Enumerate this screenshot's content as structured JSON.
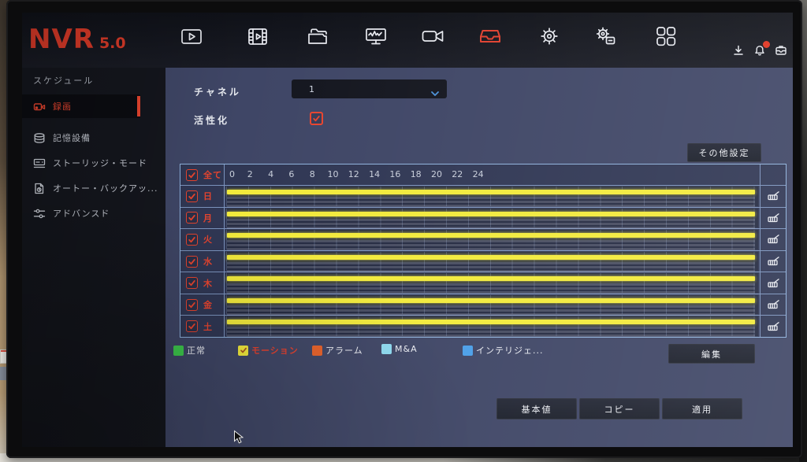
{
  "brand": {
    "name": "NVR",
    "version": "5.0"
  },
  "topbar": {
    "nav": [
      {
        "name": "playback-icon",
        "active": false
      },
      {
        "name": "filmclip-icon",
        "active": false
      },
      {
        "name": "files-icon",
        "active": false
      },
      {
        "name": "system-status-icon",
        "active": false
      },
      {
        "name": "camera-icon",
        "active": false
      },
      {
        "name": "archive-icon",
        "active": true
      },
      {
        "name": "settings-icon",
        "active": false
      },
      {
        "name": "maintenance-icon",
        "active": false
      },
      {
        "name": "apps-icon",
        "active": false
      }
    ],
    "tray": [
      {
        "name": "download-icon",
        "badge": false
      },
      {
        "name": "alarm-bell-icon",
        "badge": true
      },
      {
        "name": "backup-device-icon",
        "badge": false
      }
    ],
    "badge_color": "#e0331f"
  },
  "sidebar": {
    "section": "スケジュール",
    "items": [
      {
        "label": "録画",
        "icon": "record-icon",
        "active": true
      },
      {
        "label": "記憶設備",
        "icon": "storage-icon",
        "active": false
      },
      {
        "label": "ストーリッジ・モード",
        "icon": "storage-mode-icon",
        "active": false
      },
      {
        "label": "オートー・バックアッ...",
        "icon": "auto-backup-icon",
        "active": false
      },
      {
        "label": "アドバンスド",
        "icon": "advanced-icon",
        "active": false
      }
    ]
  },
  "main": {
    "channel_label": "チャネル",
    "channel_value": "1",
    "enable_label": "活性化",
    "enable_checked": true,
    "other_settings_label": "その他設定",
    "schedule": {
      "all_label": "全て",
      "all_checked": true,
      "hours": [
        "0",
        "2",
        "4",
        "6",
        "8",
        "10",
        "12",
        "14",
        "16",
        "18",
        "20",
        "22",
        "24"
      ],
      "days": [
        {
          "label": "日",
          "checked": true
        },
        {
          "label": "月",
          "checked": true
        },
        {
          "label": "火",
          "checked": true
        },
        {
          "label": "水",
          "checked": true
        },
        {
          "label": "木",
          "checked": true
        },
        {
          "label": "金",
          "checked": true
        },
        {
          "label": "土",
          "checked": true
        }
      ],
      "bar_color": "#f2ea3c",
      "bar_span_hours": [
        0,
        24
      ]
    },
    "legend": [
      {
        "label": "正常",
        "color": "#3ecb4d",
        "selected": false
      },
      {
        "label": "モーション",
        "color": "#f2ea3c",
        "selected": true
      },
      {
        "label": "アラーム",
        "color": "#e8622a",
        "selected": false
      },
      {
        "label": "M&A",
        "color": "#8fdcf2",
        "selected": false
      },
      {
        "label": "インテリジェ...",
        "color": "#4a9ee8",
        "selected": false
      }
    ],
    "edit_label": "編集",
    "footer_buttons": [
      {
        "label": "基本値"
      },
      {
        "label": "コピー"
      },
      {
        "label": "適用"
      }
    ],
    "accent_red": "#e8452f"
  }
}
